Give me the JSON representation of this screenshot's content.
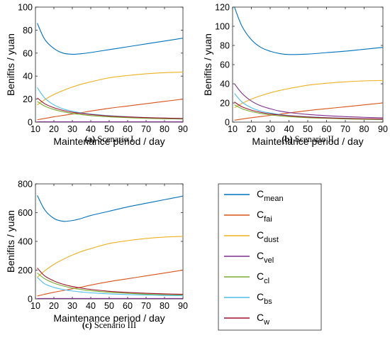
{
  "chart_data": [
    {
      "type": "line",
      "caption": {
        "label": "(a)",
        "text": "Scenario I"
      },
      "xlabel": "Maintenance period / day",
      "ylabel": "Benifits / yuan",
      "xlim": [
        10,
        90
      ],
      "ylim": [
        0,
        100
      ],
      "xticks": [
        10,
        20,
        30,
        40,
        50,
        60,
        70,
        80,
        90
      ],
      "yticks": [
        0,
        20,
        40,
        60,
        80,
        100
      ],
      "x": [
        11,
        15,
        20,
        25,
        30,
        35,
        40,
        50,
        60,
        70,
        80,
        90
      ],
      "series": [
        {
          "key": "mean",
          "color": "#0072BD",
          "values": [
            86,
            72,
            64,
            60,
            59,
            59.5,
            60.5,
            63,
            65.5,
            68,
            70.5,
            73
          ]
        },
        {
          "key": "fai",
          "color": "#D95319",
          "values": [
            2,
            3.2,
            4.6,
            5.8,
            7,
            8.2,
            9.6,
            12,
            14,
            16,
            18,
            20
          ]
        },
        {
          "key": "dust",
          "color": "#EDB120",
          "values": [
            15,
            19.5,
            24,
            27.5,
            30.5,
            33,
            35,
            38.5,
            40.5,
            42,
            43,
            43.5
          ]
        },
        {
          "key": "vel",
          "color": "#7E2F8E",
          "values": [
            0.3,
            0.3,
            0.3,
            0.3,
            0.3,
            0.3,
            0.3,
            0.3,
            0.3,
            0.3,
            0.3,
            0.3
          ]
        },
        {
          "key": "cl",
          "color": "#77AC30",
          "values": [
            18,
            14,
            11,
            9,
            7.5,
            6.5,
            5.7,
            4.6,
            3.9,
            3.3,
            2.9,
            2.6
          ]
        },
        {
          "key": "bs",
          "color": "#4DBEEE",
          "values": [
            30,
            21,
            15,
            11.5,
            9.5,
            8,
            7,
            5.6,
            4.7,
            4,
            3.5,
            3.1
          ]
        },
        {
          "key": "w",
          "color": "#A2142F",
          "values": [
            21,
            16,
            12.5,
            10.2,
            8.6,
            7.5,
            6.6,
            5.3,
            4.5,
            3.9,
            3.5,
            3.2
          ]
        }
      ]
    },
    {
      "type": "line",
      "caption": {
        "label": "(b)",
        "text": "Scenario II"
      },
      "xlabel": "Maintenance period / day",
      "ylabel": "Benifits / yuan",
      "xlim": [
        10,
        90
      ],
      "ylim": [
        0,
        120
      ],
      "xticks": [
        10,
        20,
        30,
        40,
        50,
        60,
        70,
        80,
        90
      ],
      "yticks": [
        0,
        20,
        40,
        60,
        80,
        100,
        120
      ],
      "x": [
        11,
        15,
        20,
        25,
        30,
        35,
        40,
        50,
        60,
        70,
        80,
        90
      ],
      "series": [
        {
          "key": "mean",
          "color": "#0072BD",
          "values": [
            120,
            100,
            86,
            78,
            74,
            71.5,
            70.5,
            71,
            72.5,
            74,
            76,
            78
          ]
        },
        {
          "key": "fai",
          "color": "#D95319",
          "values": [
            2,
            3.2,
            4.6,
            5.8,
            7,
            8.2,
            9.6,
            12,
            14,
            16,
            18,
            20
          ]
        },
        {
          "key": "dust",
          "color": "#EDB120",
          "values": [
            15,
            19.5,
            24,
            27.5,
            30.5,
            33,
            35,
            38.5,
            40.5,
            42,
            43,
            43.5
          ]
        },
        {
          "key": "vel",
          "color": "#7E2F8E",
          "values": [
            40,
            30,
            22,
            17,
            14,
            11.5,
            10,
            8,
            6.7,
            5.7,
            5,
            4.5
          ]
        },
        {
          "key": "cl",
          "color": "#77AC30",
          "values": [
            18,
            14,
            11,
            9,
            7.5,
            6.5,
            5.7,
            4.6,
            3.9,
            3.3,
            2.9,
            2.6
          ]
        },
        {
          "key": "bs",
          "color": "#4DBEEE",
          "values": [
            30,
            21,
            15,
            11.5,
            9.5,
            8,
            7,
            5.6,
            4.7,
            4,
            3.5,
            3.1
          ]
        },
        {
          "key": "w",
          "color": "#A2142F",
          "values": [
            21,
            16,
            12.5,
            10.2,
            8.6,
            7.5,
            6.6,
            5.3,
            4.5,
            3.9,
            3.5,
            3.2
          ]
        }
      ]
    },
    {
      "type": "line",
      "caption": {
        "label": "(c)",
        "text": "Scenario III"
      },
      "xlabel": "Maintenance period / day",
      "ylabel": "Benifits / yuan",
      "xlim": [
        10,
        90
      ],
      "ylim": [
        0,
        800
      ],
      "xticks": [
        10,
        20,
        30,
        40,
        50,
        60,
        70,
        80,
        90
      ],
      "yticks": [
        0,
        200,
        400,
        600,
        800
      ],
      "x": [
        11,
        15,
        20,
        25,
        30,
        35,
        40,
        50,
        60,
        70,
        80,
        90
      ],
      "series": [
        {
          "key": "mean",
          "color": "#0072BD",
          "values": [
            720,
            620,
            560,
            540,
            545,
            560,
            580,
            610,
            640,
            665,
            690,
            715
          ]
        },
        {
          "key": "fai",
          "color": "#D95319",
          "values": [
            20,
            32,
            46,
            58,
            70,
            82,
            96,
            120,
            140,
            160,
            180,
            200
          ]
        },
        {
          "key": "dust",
          "color": "#EDB120",
          "values": [
            150,
            195,
            240,
            275,
            305,
            330,
            350,
            385,
            405,
            420,
            430,
            435
          ]
        },
        {
          "key": "vel",
          "color": "#7E2F8E",
          "values": [
            3,
            3,
            3,
            3,
            3,
            3,
            3,
            3,
            3,
            3,
            3,
            3
          ]
        },
        {
          "key": "cl",
          "color": "#77AC30",
          "values": [
            180,
            140,
            110,
            90,
            75,
            65,
            57,
            46,
            39,
            33,
            29,
            26
          ]
        },
        {
          "key": "bs",
          "color": "#4DBEEE",
          "values": [
            150,
            105,
            80,
            65,
            55,
            48,
            42,
            35,
            30,
            27,
            24,
            22
          ]
        },
        {
          "key": "w",
          "color": "#A2142F",
          "values": [
            215,
            160,
            125,
            102,
            86,
            75,
            66,
            53,
            45,
            39,
            35,
            32
          ]
        }
      ]
    }
  ],
  "legend": {
    "entries": [
      {
        "key": "mean",
        "base": "C",
        "sub": "mean",
        "color": "#0072BD"
      },
      {
        "key": "fai",
        "base": "C",
        "sub": "fai",
        "color": "#D95319"
      },
      {
        "key": "dust",
        "base": "C",
        "sub": "dust",
        "color": "#EDB120"
      },
      {
        "key": "vel",
        "base": "C",
        "sub": "vel",
        "color": "#7E2F8E"
      },
      {
        "key": "cl",
        "base": "C",
        "sub": "cl",
        "color": "#77AC30"
      },
      {
        "key": "bs",
        "base": "C",
        "sub": "bs",
        "color": "#4DBEEE"
      },
      {
        "key": "w",
        "base": "C",
        "sub": "w",
        "color": "#A2142F"
      }
    ]
  }
}
